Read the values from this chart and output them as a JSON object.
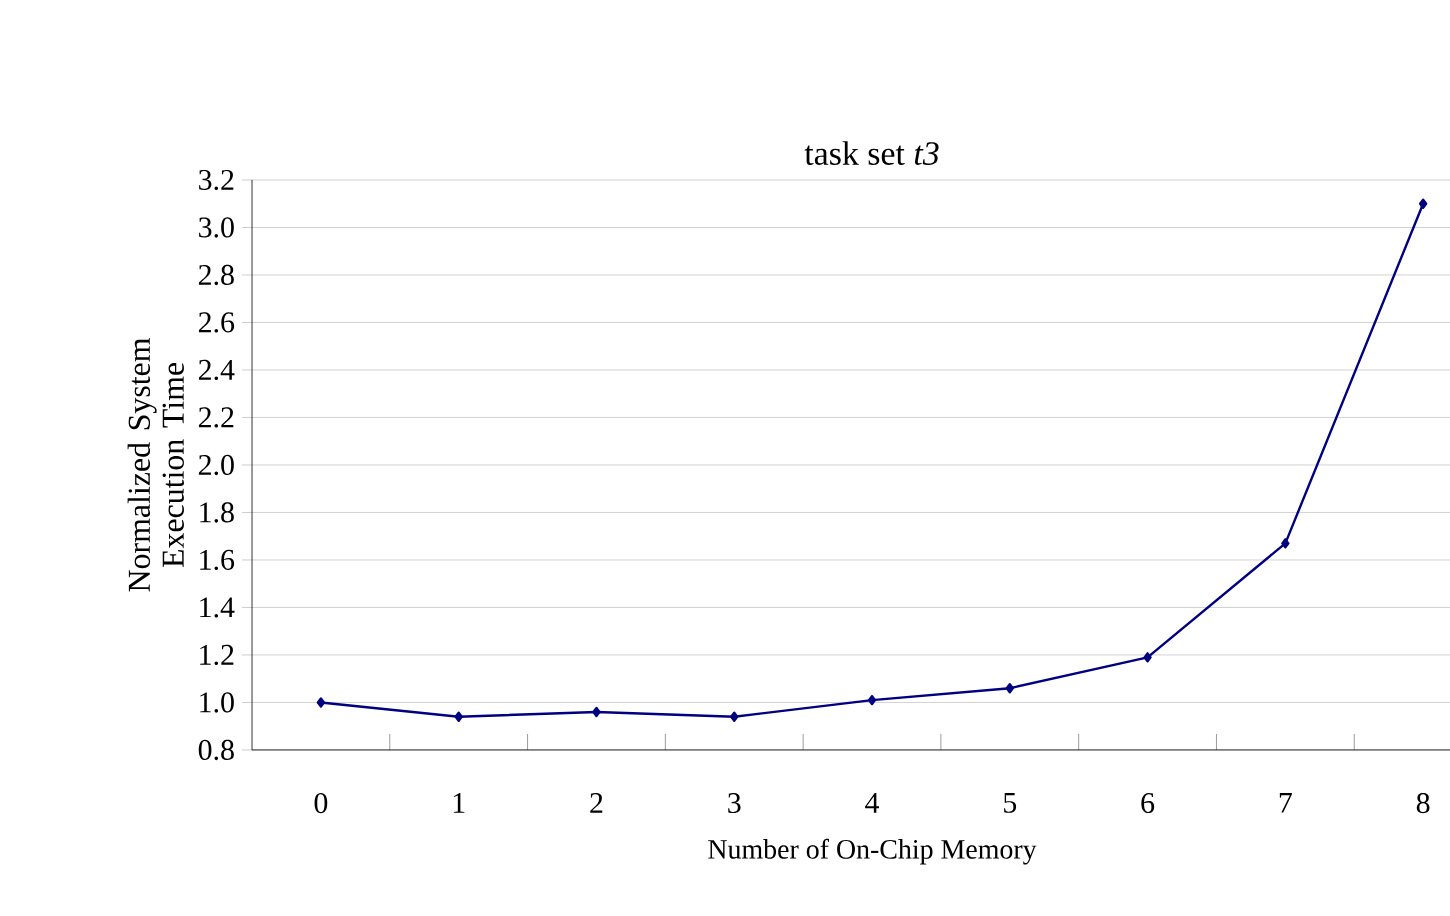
{
  "chart_data": {
    "type": "line",
    "title": "task set *t3*",
    "xlabel": "Number of On-Chip Memory",
    "ylabel": "Normalized System Execution Time",
    "categories": [
      "0",
      "1",
      "2",
      "3",
      "4",
      "5",
      "6",
      "7",
      "8"
    ],
    "series": [
      {
        "color": "#000080",
        "values": [
          1.0,
          0.94,
          0.96,
          0.94,
          1.01,
          1.06,
          1.19,
          1.67,
          3.1
        ]
      }
    ],
    "ylim": [
      0.8,
      3.2
    ],
    "yticks": [
      {
        "value": 0.8,
        "label": "0.8"
      },
      {
        "value": 1.0,
        "label": "1.0"
      },
      {
        "value": 1.2,
        "label": "1.2"
      },
      {
        "value": 1.4,
        "label": "1.4"
      },
      {
        "value": 1.6,
        "label": "1.6"
      },
      {
        "value": 1.8,
        "label": "1.8"
      },
      {
        "value": 2.0,
        "label": "2.0"
      },
      {
        "value": 2.2,
        "label": "2.2"
      },
      {
        "value": 2.4,
        "label": "2.4"
      },
      {
        "value": 2.6,
        "label": "2.6"
      },
      {
        "value": 2.8,
        "label": "2.8"
      },
      {
        "value": 3.0,
        "label": "3.0"
      },
      {
        "value": 3.2,
        "label": "3.2"
      }
    ],
    "grid": "y",
    "marker": "diamond",
    "line_style": "solid"
  }
}
